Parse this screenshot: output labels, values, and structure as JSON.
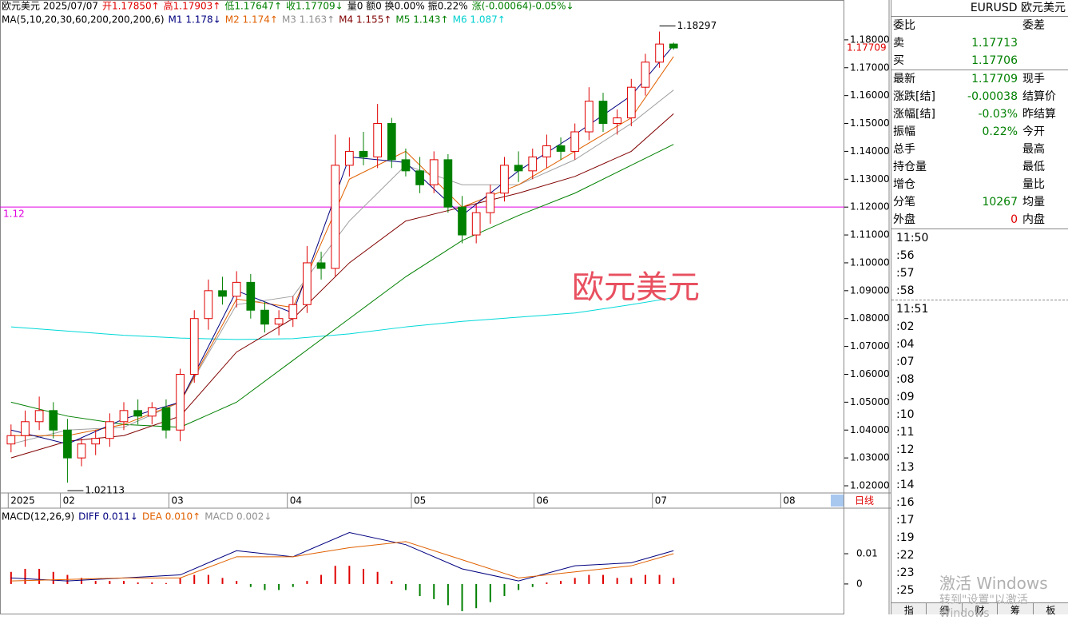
{
  "header": {
    "quote": [
      {
        "text": "欧元美元 2025/07/07",
        "color": "#000"
      },
      {
        "text": "开1.17850↑",
        "color": "#e00000"
      },
      {
        "text": "高1.17903↑",
        "color": "#e00000"
      },
      {
        "text": "低1.17647↑",
        "color": "#008000"
      },
      {
        "text": "收1.17709↓",
        "color": "#008000"
      },
      {
        "text": "量0 额0 换0.00% 振0.22%",
        "color": "#000"
      },
      {
        "text": "涨(-0.00064)-0.05%↓",
        "color": "#008000"
      }
    ],
    "ma": [
      {
        "text": "MA(5,10,20,30,60,200,200,200,6)",
        "color": "#000"
      },
      {
        "text": "M1 1.178↓",
        "color": "#000080"
      },
      {
        "text": "M2 1.174↑",
        "color": "#e06000"
      },
      {
        "text": "M3 1.163↑",
        "color": "#909090"
      },
      {
        "text": "M4 1.155↑",
        "color": "#800000"
      },
      {
        "text": "M5 1.143↑",
        "color": "#008000"
      },
      {
        "text": "M6 1.087↑",
        "color": "#00d0d0"
      }
    ],
    "macd": [
      {
        "text": "MACD(12,26,9)",
        "color": "#000"
      },
      {
        "text": "DIFF 0.011↓",
        "color": "#000080"
      },
      {
        "text": "DEA 0.010↑",
        "color": "#e06000"
      },
      {
        "text": "MACD 0.002↓",
        "color": "#909090"
      }
    ]
  },
  "chart_data": [
    {
      "type": "candlestick",
      "title": "欧元美元",
      "xlim": [
        -0.5,
        59
      ],
      "ylim": [
        1.018,
        1.19
      ],
      "xticks": [
        {
          "value": -0.2,
          "label": "2025"
        },
        {
          "value": 3.5,
          "label": "02"
        },
        {
          "value": 11.2,
          "label": "03"
        },
        {
          "value": 19.6,
          "label": "04"
        },
        {
          "value": 28.4,
          "label": "05"
        },
        {
          "value": 37.1,
          "label": "06"
        },
        {
          "value": 45.5,
          "label": "07"
        },
        {
          "value": 54.6,
          "label": "08"
        }
      ],
      "yticks": [
        {
          "value": 1.18,
          "label": "1.18000"
        },
        {
          "value": 1.17,
          "label": "1.17000"
        },
        {
          "value": 1.16,
          "label": "1.16000"
        },
        {
          "value": 1.15,
          "label": "1.15000"
        },
        {
          "value": 1.14,
          "label": "1.14000"
        },
        {
          "value": 1.13,
          "label": "1.13000"
        },
        {
          "value": 1.12,
          "label": "1.12000"
        },
        {
          "value": 1.11,
          "label": "1.11000"
        },
        {
          "value": 1.1,
          "label": "1.10000"
        },
        {
          "value": 1.09,
          "label": "1.09000"
        },
        {
          "value": 1.08,
          "label": "1.08000"
        },
        {
          "value": 1.07,
          "label": "1.07000"
        },
        {
          "value": 1.06,
          "label": "1.06000"
        },
        {
          "value": 1.05,
          "label": "1.05000"
        },
        {
          "value": 1.04,
          "label": "1.04000"
        },
        {
          "value": 1.03,
          "label": "1.03000"
        },
        {
          "value": 1.02,
          "label": "1.02000"
        }
      ],
      "open": [
        1.035,
        1.038,
        1.043,
        1.047,
        1.04,
        1.03,
        1.035,
        1.037,
        1.043,
        1.047,
        1.045,
        1.048,
        1.04,
        1.06,
        1.08,
        1.09,
        1.088,
        1.093,
        1.083,
        1.078,
        1.08,
        1.085,
        1.1,
        1.098,
        1.135,
        1.14,
        1.138,
        1.15,
        1.137,
        1.133,
        1.128,
        1.137,
        1.12,
        1.11,
        1.118,
        1.125,
        1.135,
        1.133,
        1.138,
        1.142,
        1.14,
        1.147,
        1.158,
        1.15,
        1.152,
        1.163,
        1.172,
        1.1785
      ],
      "high": [
        1.042,
        1.047,
        1.052,
        1.05,
        1.044,
        1.037,
        1.04,
        1.046,
        1.05,
        1.051,
        1.05,
        1.051,
        1.062,
        1.083,
        1.094,
        1.095,
        1.097,
        1.096,
        1.086,
        1.083,
        1.088,
        1.106,
        1.104,
        1.146,
        1.145,
        1.147,
        1.157,
        1.152,
        1.141,
        1.138,
        1.14,
        1.139,
        1.124,
        1.121,
        1.128,
        1.138,
        1.14,
        1.141,
        1.146,
        1.145,
        1.15,
        1.163,
        1.161,
        1.155,
        1.166,
        1.175,
        1.18297,
        1.17903
      ],
      "low": [
        1.032,
        1.034,
        1.04,
        1.037,
        1.02113,
        1.027,
        1.031,
        1.034,
        1.04,
        1.042,
        1.042,
        1.037,
        1.036,
        1.057,
        1.076,
        1.085,
        1.084,
        1.08,
        1.075,
        1.074,
        1.077,
        1.082,
        1.094,
        1.095,
        1.131,
        1.135,
        1.134,
        1.134,
        1.131,
        1.125,
        1.125,
        1.118,
        1.107,
        1.107,
        1.114,
        1.122,
        1.129,
        1.13,
        1.134,
        1.137,
        1.137,
        1.144,
        1.147,
        1.146,
        1.149,
        1.16,
        1.17,
        1.17647
      ],
      "close": [
        1.038,
        1.043,
        1.047,
        1.04,
        1.03,
        1.035,
        1.037,
        1.043,
        1.047,
        1.045,
        1.048,
        1.04,
        1.06,
        1.08,
        1.09,
        1.088,
        1.093,
        1.083,
        1.078,
        1.08,
        1.085,
        1.1,
        1.098,
        1.135,
        1.14,
        1.138,
        1.15,
        1.137,
        1.133,
        1.128,
        1.137,
        1.12,
        1.11,
        1.118,
        1.125,
        1.135,
        1.133,
        1.138,
        1.142,
        1.14,
        1.147,
        1.158,
        1.15,
        1.152,
        1.163,
        1.172,
        1.1785,
        1.17709
      ],
      "up_color": "#e00000",
      "down_color": "#008000",
      "ma_x": [
        0,
        4,
        8,
        12,
        16,
        20,
        24,
        28,
        32,
        36,
        40,
        44,
        47
      ],
      "series": [
        {
          "name": "M6",
          "color": "#00d8d8",
          "values": [
            1.077,
            1.0755,
            1.074,
            1.073,
            1.0725,
            1.0728,
            1.0745,
            1.077,
            1.079,
            1.0805,
            1.082,
            1.085,
            1.0875
          ]
        },
        {
          "name": "M5",
          "color": "#008000",
          "values": [
            1.05,
            1.045,
            1.042,
            1.041,
            1.05,
            1.065,
            1.08,
            1.095,
            1.108,
            1.117,
            1.125,
            1.135,
            1.1425
          ]
        },
        {
          "name": "M4",
          "color": "#800000",
          "values": [
            1.03,
            1.036,
            1.038,
            1.045,
            1.068,
            1.08,
            1.1,
            1.115,
            1.12,
            1.125,
            1.131,
            1.14,
            1.1535
          ]
        },
        {
          "name": "M3",
          "color": "#a0a0a0",
          "values": [
            1.035,
            1.04,
            1.041,
            1.05,
            1.085,
            1.088,
            1.115,
            1.135,
            1.128,
            1.128,
            1.137,
            1.15,
            1.162
          ]
        },
        {
          "name": "M2",
          "color": "#e06000",
          "values": [
            1.038,
            1.038,
            1.042,
            1.05,
            1.087,
            1.084,
            1.13,
            1.14,
            1.12,
            1.128,
            1.14,
            1.152,
            1.174
          ]
        },
        {
          "name": "M1",
          "color": "#000080",
          "values": [
            1.04,
            1.035,
            1.044,
            1.05,
            1.09,
            1.082,
            1.138,
            1.136,
            1.117,
            1.133,
            1.146,
            1.16,
            1.178
          ]
        }
      ],
      "hline": {
        "value": 1.12,
        "label": "1.12",
        "color": "#e000e0"
      },
      "annotations": [
        {
          "text": "1.18297",
          "index": 46,
          "value": 1.18297
        },
        {
          "text": "1.02113",
          "index": 4,
          "value": 1.02113
        }
      ],
      "last_price": {
        "value": 1.17709,
        "label": "1.17709"
      },
      "period": "日线"
    },
    {
      "type": "macd",
      "xlim": [
        -0.5,
        59
      ],
      "ylim": [
        -0.009,
        0.024
      ],
      "yticks": [
        0.01,
        0
      ],
      "hist": [
        0.004,
        0.005,
        0.005,
        0.004,
        0.003,
        0.002,
        0.001,
        0.001,
        0.001,
        0.0005,
        0.0005,
        0.0003,
        0.002,
        0.003,
        0.003,
        0.002,
        0.001,
        -0.001,
        -0.002,
        -0.002,
        -0.001,
        0.001,
        0.003,
        0.006,
        0.006,
        0.005,
        0.004,
        0.001,
        -0.002,
        -0.004,
        -0.005,
        -0.007,
        -0.009,
        -0.008,
        -0.006,
        -0.004,
        -0.002,
        -0.001,
        0.0005,
        0.001,
        0.002,
        0.003,
        0.003,
        0.002,
        0.002,
        0.003,
        0.003,
        0.002
      ],
      "ma_x": [
        0,
        4,
        8,
        12,
        16,
        20,
        24,
        28,
        32,
        36,
        40,
        44,
        47
      ],
      "series": [
        {
          "name": "DIFF",
          "color": "#000080",
          "values": [
            0.002,
            0.001,
            0.002,
            0.003,
            0.011,
            0.009,
            0.017,
            0.013,
            0.005,
            0.001,
            0.006,
            0.007,
            0.011
          ]
        },
        {
          "name": "DEA",
          "color": "#e06000",
          "values": [
            0.001,
            0.0015,
            0.002,
            0.002,
            0.009,
            0.009,
            0.012,
            0.014,
            0.008,
            0.002,
            0.004,
            0.006,
            0.01
          ]
        }
      ]
    }
  ],
  "panel": {
    "symbol": "EURUSD 欧元美元",
    "rows": [
      [
        "委比",
        "",
        "委差"
      ],
      [
        "卖",
        "1.17713",
        ""
      ],
      [
        "买",
        "1.17706",
        ""
      ],
      [
        "最新",
        "1.17709",
        "现手"
      ],
      [
        "涨跌[结]",
        "-0.00038",
        "结算价"
      ],
      [
        "涨幅[结]",
        "-0.03%",
        "昨结算"
      ],
      [
        "振幅",
        "0.22%",
        "今开"
      ],
      [
        "总手",
        "",
        "最高"
      ],
      [
        "持仓量",
        "",
        "最低"
      ],
      [
        "增仓",
        "",
        "量比"
      ],
      [
        "分笔",
        "10267",
        "均量"
      ],
      [
        "外盘",
        "0",
        "内盘"
      ]
    ],
    "times": [
      "11:50",
      ":56",
      ":57",
      ":58",
      "11:51",
      ":02",
      ":04",
      ":07",
      ":08",
      ":09",
      ":10",
      ":11",
      ":12",
      ":13",
      ":14",
      ":16",
      ":17",
      ":19",
      ":22",
      ":23",
      ":25"
    ],
    "tabs": [
      "指",
      "细",
      "财",
      "筹",
      "板"
    ]
  },
  "watermark": [
    "激活 Windows",
    "转到\"设置\"以激活 Windows"
  ]
}
